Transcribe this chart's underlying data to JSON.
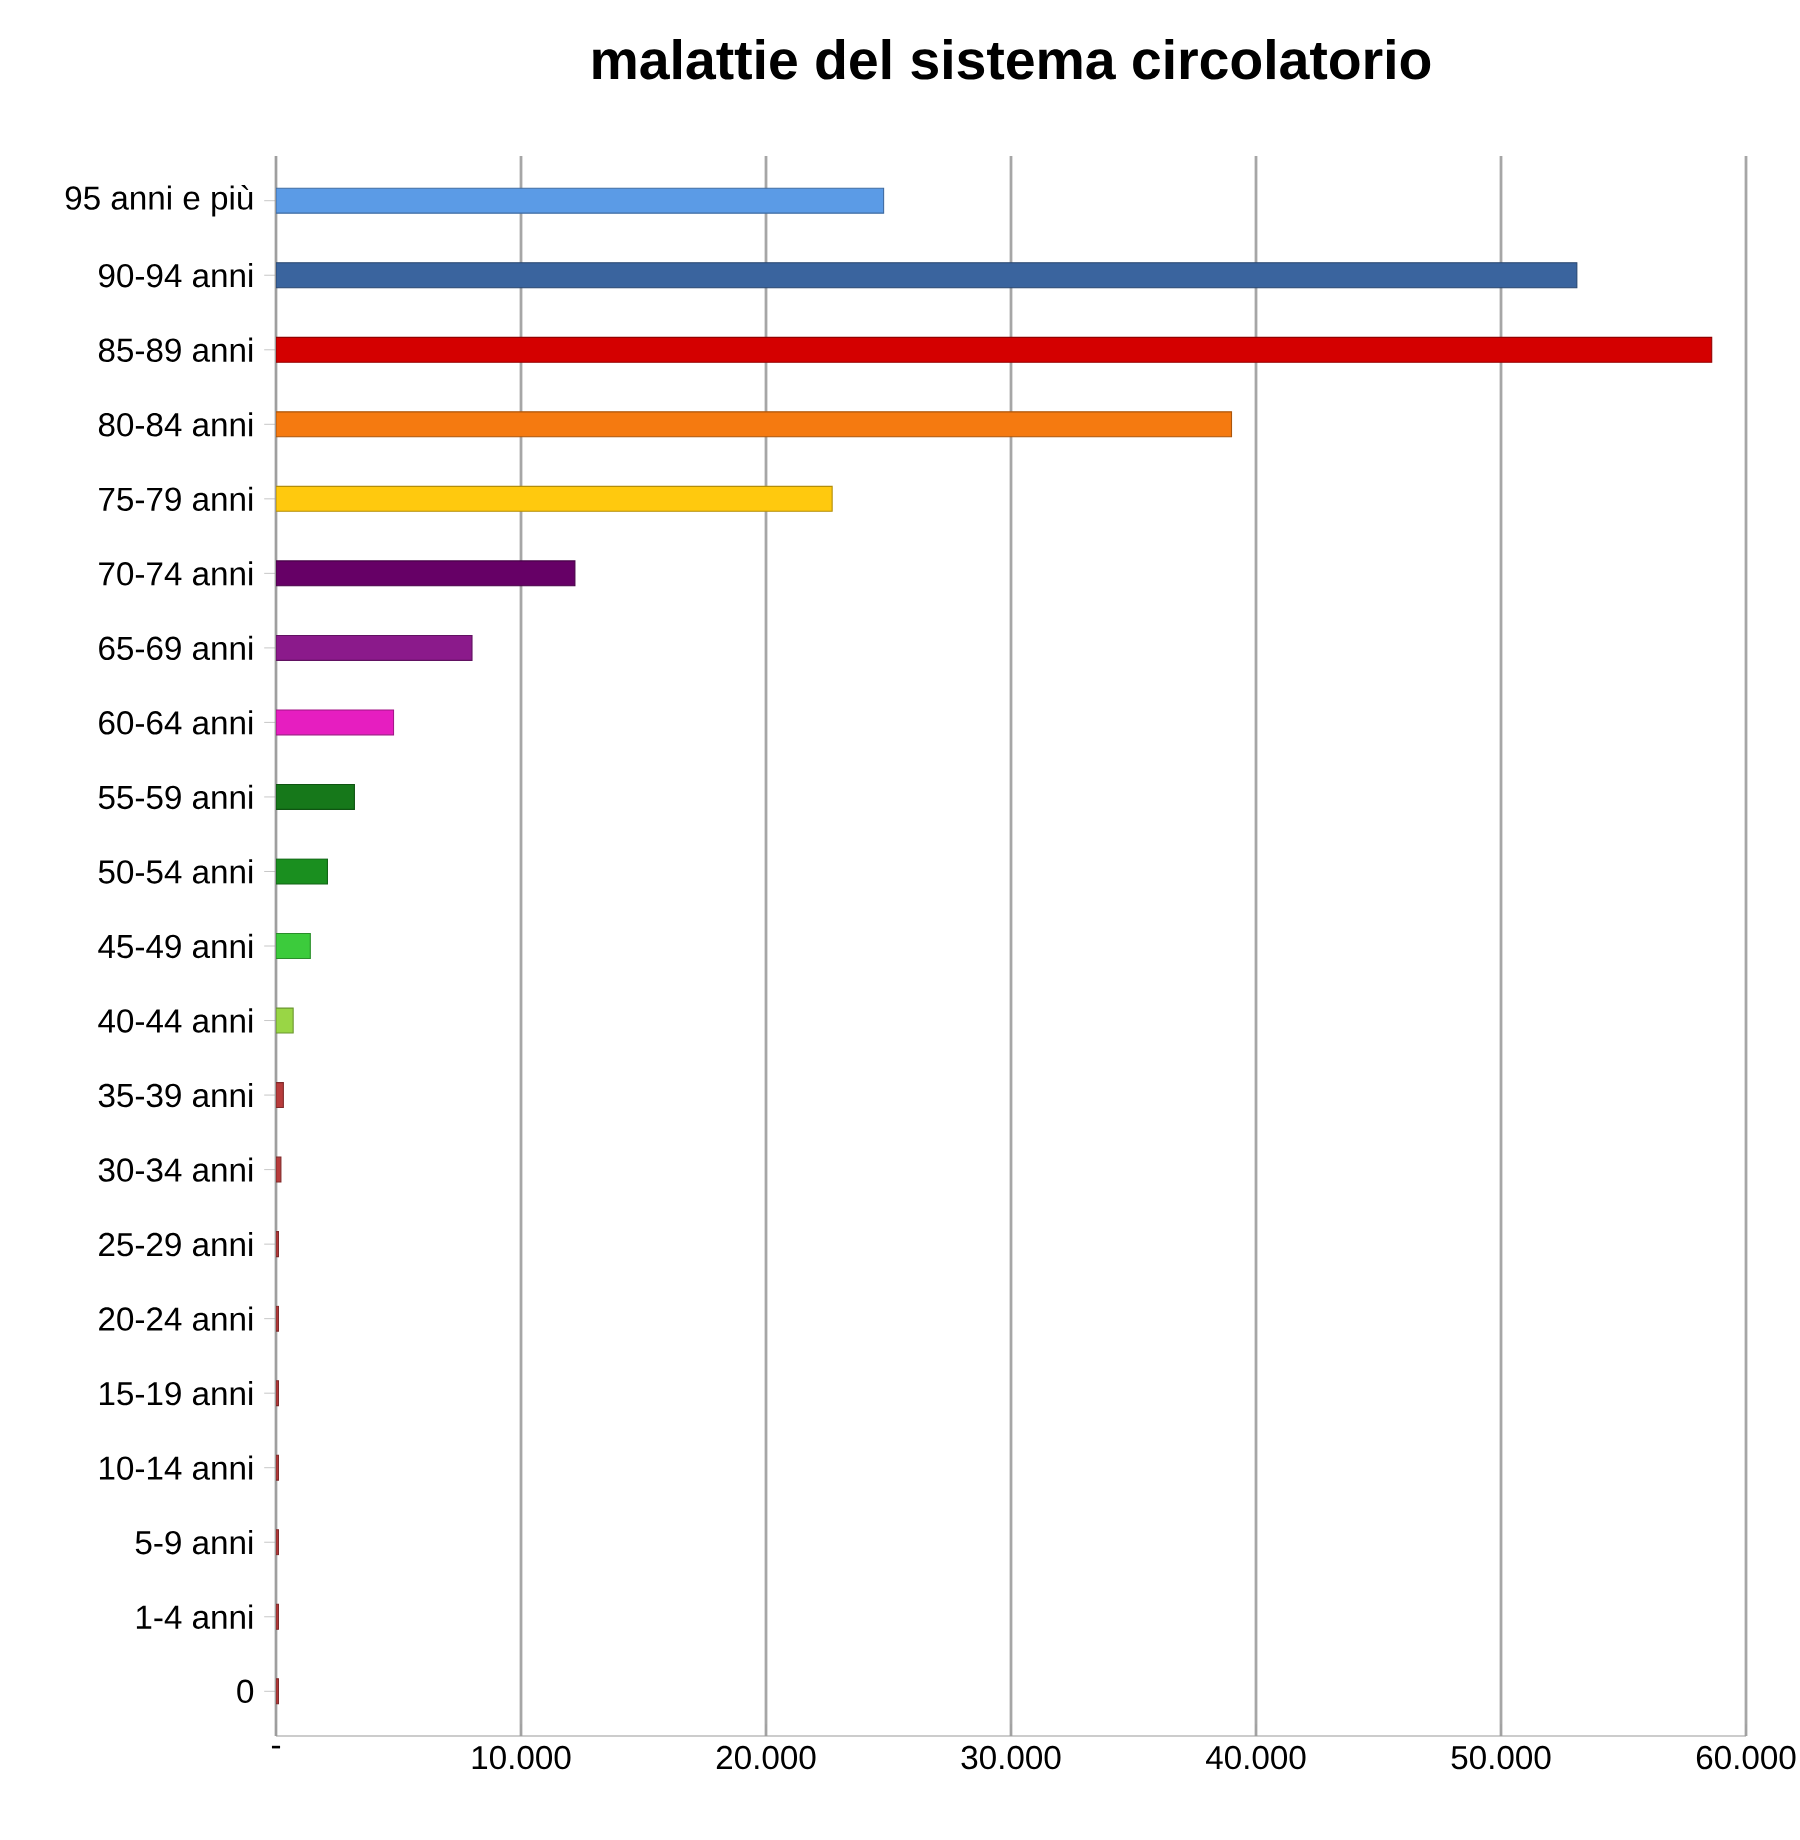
{
  "chart_data": {
    "type": "bar",
    "orientation": "horizontal",
    "title": "malattie del sistema circolatorio",
    "categories": [
      "95 anni e più",
      "90-94 anni",
      "85-89 anni",
      "80-84 anni",
      "75-79 anni",
      "70-74 anni",
      "65-69 anni",
      "60-64 anni",
      "55-59 anni",
      "50-54 anni",
      "45-49 anni",
      "40-44 anni",
      "35-39 anni",
      "30-34 anni",
      "25-29 anni",
      "20-24 anni",
      "15-19 anni",
      "10-14 anni",
      "5-9 anni",
      "1-4 anni",
      "0"
    ],
    "values": [
      24800,
      53100,
      58600,
      39000,
      22700,
      12200,
      8000,
      4800,
      3200,
      2100,
      1400,
      700,
      300,
      200,
      100,
      100,
      100,
      100,
      100,
      100,
      100
    ],
    "colors": [
      "#5b9be6",
      "#3a649e",
      "#d40000",
      "#f57a10",
      "#ffc90e",
      "#660066",
      "#8b1a8b",
      "#e61ec0",
      "#16781a",
      "#1a8f1f",
      "#3ccb3c",
      "#99d645",
      "#b83c3c",
      "#b83c3c",
      "#b83c3c",
      "#b83c3c",
      "#b83c3c",
      "#b83c3c",
      "#b83c3c",
      "#b83c3c",
      "#b83c3c"
    ],
    "xlim": [
      0,
      60000
    ],
    "xticks": [
      {
        "value": 0,
        "label": "-"
      },
      {
        "value": 10000,
        "label": "10.000"
      },
      {
        "value": 20000,
        "label": "20.000"
      },
      {
        "value": 30000,
        "label": "30.000"
      },
      {
        "value": 40000,
        "label": "40.000"
      },
      {
        "value": 50000,
        "label": "50.000"
      },
      {
        "value": 60000,
        "label": "60.000"
      }
    ],
    "grid": "x"
  }
}
